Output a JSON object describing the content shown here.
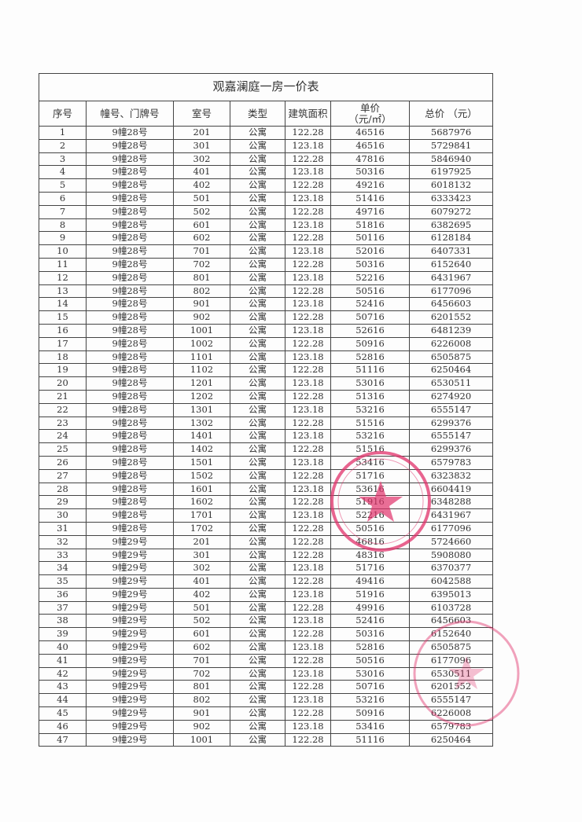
{
  "title": "观嘉澜庭一房一价表",
  "headers": {
    "no": "序号",
    "building": "幢号、门牌号",
    "room": "室号",
    "type": "类型",
    "area": "建筑面积",
    "unit_price_line1": "单价",
    "unit_price_line2": "（元/㎡）",
    "total_price": "总价 （元）"
  },
  "rows": [
    [
      "1",
      "9幢28号",
      "201",
      "公寓",
      "122.28",
      "46516",
      "5687976"
    ],
    [
      "2",
      "9幢28号",
      "301",
      "公寓",
      "123.18",
      "46516",
      "5729841"
    ],
    [
      "3",
      "9幢28号",
      "302",
      "公寓",
      "122.28",
      "47816",
      "5846940"
    ],
    [
      "4",
      "9幢28号",
      "401",
      "公寓",
      "123.18",
      "50316",
      "6197925"
    ],
    [
      "5",
      "9幢28号",
      "402",
      "公寓",
      "122.28",
      "49216",
      "6018132"
    ],
    [
      "6",
      "9幢28号",
      "501",
      "公寓",
      "123.18",
      "51416",
      "6333423"
    ],
    [
      "7",
      "9幢28号",
      "502",
      "公寓",
      "122.28",
      "49716",
      "6079272"
    ],
    [
      "8",
      "9幢28号",
      "601",
      "公寓",
      "123.18",
      "51816",
      "6382695"
    ],
    [
      "9",
      "9幢28号",
      "602",
      "公寓",
      "122.28",
      "50116",
      "6128184"
    ],
    [
      "10",
      "9幢28号",
      "701",
      "公寓",
      "123.18",
      "52016",
      "6407331"
    ],
    [
      "11",
      "9幢28号",
      "702",
      "公寓",
      "122.28",
      "50316",
      "6152640"
    ],
    [
      "12",
      "9幢28号",
      "801",
      "公寓",
      "123.18",
      "52216",
      "6431967"
    ],
    [
      "13",
      "9幢28号",
      "802",
      "公寓",
      "122.28",
      "50516",
      "6177096"
    ],
    [
      "14",
      "9幢28号",
      "901",
      "公寓",
      "123.18",
      "52416",
      "6456603"
    ],
    [
      "15",
      "9幢28号",
      "902",
      "公寓",
      "122.28",
      "50716",
      "6201552"
    ],
    [
      "16",
      "9幢28号",
      "1001",
      "公寓",
      "123.18",
      "52616",
      "6481239"
    ],
    [
      "17",
      "9幢28号",
      "1002",
      "公寓",
      "122.28",
      "50916",
      "6226008"
    ],
    [
      "18",
      "9幢28号",
      "1101",
      "公寓",
      "123.18",
      "52816",
      "6505875"
    ],
    [
      "19",
      "9幢28号",
      "1102",
      "公寓",
      "122.28",
      "51116",
      "6250464"
    ],
    [
      "20",
      "9幢28号",
      "1201",
      "公寓",
      "123.18",
      "53016",
      "6530511"
    ],
    [
      "21",
      "9幢28号",
      "1202",
      "公寓",
      "122.28",
      "51316",
      "6274920"
    ],
    [
      "22",
      "9幢28号",
      "1301",
      "公寓",
      "123.18",
      "53216",
      "6555147"
    ],
    [
      "23",
      "9幢28号",
      "1302",
      "公寓",
      "122.28",
      "51516",
      "6299376"
    ],
    [
      "24",
      "9幢28号",
      "1401",
      "公寓",
      "123.18",
      "53216",
      "6555147"
    ],
    [
      "25",
      "9幢28号",
      "1402",
      "公寓",
      "122.28",
      "51516",
      "6299376"
    ],
    [
      "26",
      "9幢28号",
      "1501",
      "公寓",
      "123.18",
      "53416",
      "6579783"
    ],
    [
      "27",
      "9幢28号",
      "1502",
      "公寓",
      "122.28",
      "51716",
      "6323832"
    ],
    [
      "28",
      "9幢28号",
      "1601",
      "公寓",
      "123.18",
      "53616",
      "6604419"
    ],
    [
      "29",
      "9幢28号",
      "1602",
      "公寓",
      "122.28",
      "51916",
      "6348288"
    ],
    [
      "30",
      "9幢28号",
      "1701",
      "公寓",
      "123.18",
      "52216",
      "6431967"
    ],
    [
      "31",
      "9幢28号",
      "1702",
      "公寓",
      "122.28",
      "50516",
      "6177096"
    ],
    [
      "32",
      "9幢29号",
      "201",
      "公寓",
      "122.28",
      "46816",
      "5724660"
    ],
    [
      "33",
      "9幢29号",
      "301",
      "公寓",
      "122.28",
      "48316",
      "5908080"
    ],
    [
      "34",
      "9幢29号",
      "302",
      "公寓",
      "123.18",
      "51716",
      "6370377"
    ],
    [
      "35",
      "9幢29号",
      "401",
      "公寓",
      "122.28",
      "49416",
      "6042588"
    ],
    [
      "36",
      "9幢29号",
      "402",
      "公寓",
      "123.18",
      "51916",
      "6395013"
    ],
    [
      "37",
      "9幢29号",
      "501",
      "公寓",
      "122.28",
      "49916",
      "6103728"
    ],
    [
      "38",
      "9幢29号",
      "502",
      "公寓",
      "123.18",
      "52416",
      "6456603"
    ],
    [
      "39",
      "9幢29号",
      "601",
      "公寓",
      "122.28",
      "50316",
      "6152640"
    ],
    [
      "40",
      "9幢29号",
      "602",
      "公寓",
      "123.18",
      "52816",
      "6505875"
    ],
    [
      "41",
      "9幢29号",
      "701",
      "公寓",
      "122.28",
      "50516",
      "6177096"
    ],
    [
      "42",
      "9幢29号",
      "702",
      "公寓",
      "123.18",
      "53016",
      "6530511"
    ],
    [
      "43",
      "9幢29号",
      "801",
      "公寓",
      "122.28",
      "50716",
      "6201552"
    ],
    [
      "44",
      "9幢29号",
      "802",
      "公寓",
      "123.18",
      "53216",
      "6555147"
    ],
    [
      "45",
      "9幢29号",
      "901",
      "公寓",
      "122.28",
      "50916",
      "6226008"
    ],
    [
      "46",
      "9幢29号",
      "902",
      "公寓",
      "123.18",
      "53416",
      "6579783"
    ],
    [
      "47",
      "9幢29号",
      "1001",
      "公寓",
      "122.28",
      "51116",
      "6250464"
    ]
  ],
  "stamp_color": "#e0306a"
}
